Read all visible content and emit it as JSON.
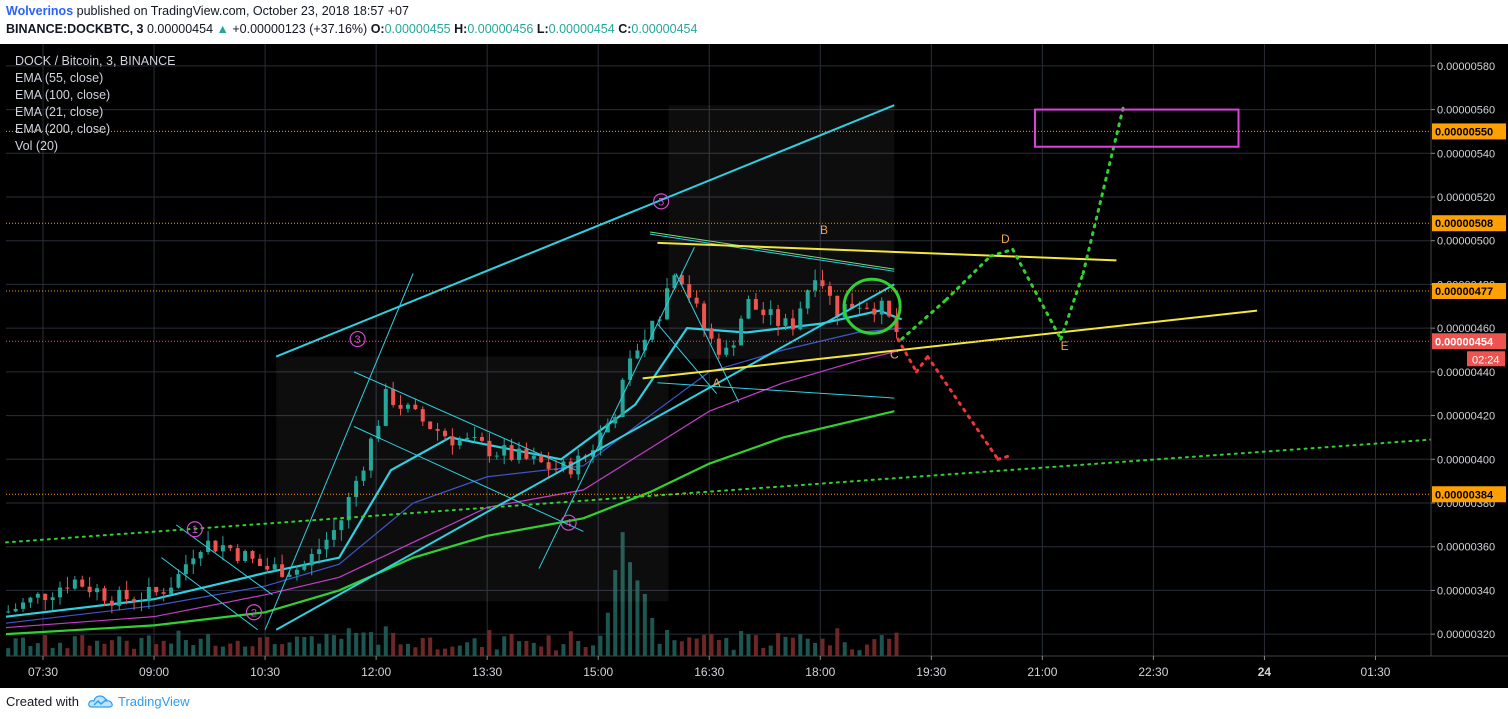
{
  "header": {
    "author": "Wolverinos",
    "published_text": "published on TradingView.com, October 23, 2018 18:57 +07",
    "symbol_line": "BINANCE:DOCKBTC, 3",
    "last_price": "0.00000454",
    "change_symbol": "▲",
    "change_text": "+0.00000123 (+37.16%)",
    "ohlc_labels": {
      "o": "O:",
      "h": "H:",
      "l": "L:",
      "c": "C:"
    },
    "ohlc_values": {
      "o": "0.00000455",
      "h": "0.00000456",
      "l": "0.00000454",
      "c": "0.00000454"
    }
  },
  "legend": {
    "title": "DOCK / Bitcoin, 3, BINANCE",
    "items": [
      "EMA (55, close)",
      "EMA (100, close)",
      "EMA (21, close)",
      "EMA (200, close)",
      "Vol (20)"
    ]
  },
  "footer": {
    "created_with": "Created with",
    "brand": "TradingView"
  },
  "colors": {
    "background": "#000000",
    "grid": "#2a2e39",
    "candle_up": "#26a69a",
    "candle_down": "#ef5350",
    "ema21": "#2fd0e0",
    "ema55": "#3e56c8",
    "ema100": "#c13ec8",
    "ema200": "#31d131",
    "channel": "#2fd0e0",
    "yellow": "#f2e83a",
    "magenta": "#e040e0",
    "orange_label": "#f2a14e",
    "pivot_purple": "#d04ad0",
    "horizontal_level": "#ff9800",
    "price_tag": "#ffa000",
    "last_price_tag": "#ef5350"
  },
  "chart_data": {
    "type": "candlestick",
    "symbol": "DOCK / Bitcoin, 3, BINANCE",
    "y_axis": {
      "min": 3.1e-06,
      "max": 5.9e-06,
      "ticks": [
        "0.00000580",
        "0.00000560",
        "0.00000540",
        "0.00000520",
        "0.00000500",
        "0.00000480",
        "0.00000460",
        "0.00000440",
        "0.00000420",
        "0.00000400",
        "0.00000380",
        "0.00000360",
        "0.00000340",
        "0.00000320"
      ],
      "tick_values": [
        5.8,
        5.6,
        5.4,
        5.2,
        5.0,
        4.8,
        4.6,
        4.4,
        4.2,
        4.0,
        3.8,
        3.6,
        3.4,
        3.2
      ]
    },
    "x_axis": {
      "labels": [
        "07:30",
        "09:00",
        "10:30",
        "12:00",
        "13:30",
        "15:00",
        "16:30",
        "18:00",
        "19:30",
        "21:00",
        "22:30",
        "24",
        "01:30"
      ],
      "hours": [
        7.5,
        9,
        10.5,
        12,
        13.5,
        15,
        16.5,
        18,
        19.5,
        21,
        22.5,
        24,
        25.5
      ],
      "start_hour": 7.0,
      "end_hour": 26.25
    },
    "price_levels": [
      {
        "label": "0.00000550",
        "value": 5.5
      },
      {
        "label": "0.00000508",
        "value": 5.08
      },
      {
        "label": "0.00000477",
        "value": 4.77
      },
      {
        "label": "0.00000454",
        "value": 4.54,
        "last": true
      },
      {
        "label": "0.00000384",
        "value": 3.84
      }
    ],
    "countdown": "02:24",
    "keypoints": [
      {
        "t": 7.0,
        "p": 3.3
      },
      {
        "t": 7.5,
        "p": 3.38
      },
      {
        "t": 7.9,
        "p": 3.45
      },
      {
        "t": 8.5,
        "p": 3.36
      },
      {
        "t": 9.0,
        "p": 3.38
      },
      {
        "t": 9.3,
        "p": 3.45
      },
      {
        "t": 9.6,
        "p": 3.62
      },
      {
        "t": 10.0,
        "p": 3.6
      },
      {
        "t": 10.5,
        "p": 3.5
      },
      {
        "t": 11.0,
        "p": 3.5
      },
      {
        "t": 11.5,
        "p": 3.7
      },
      {
        "t": 11.9,
        "p": 4.05
      },
      {
        "t": 12.15,
        "p": 4.3
      },
      {
        "t": 12.5,
        "p": 4.2
      },
      {
        "t": 13.0,
        "p": 4.1
      },
      {
        "t": 13.5,
        "p": 4.05
      },
      {
        "t": 14.0,
        "p": 4.0
      },
      {
        "t": 14.5,
        "p": 3.95
      },
      {
        "t": 14.8,
        "p": 4.0
      },
      {
        "t": 15.2,
        "p": 4.2
      },
      {
        "t": 15.5,
        "p": 4.5
      },
      {
        "t": 15.8,
        "p": 4.65
      },
      {
        "t": 16.05,
        "p": 4.9
      },
      {
        "t": 16.3,
        "p": 4.7
      },
      {
        "t": 16.5,
        "p": 4.55
      },
      {
        "t": 16.75,
        "p": 4.48
      },
      {
        "t": 17.0,
        "p": 4.72
      },
      {
        "t": 17.3,
        "p": 4.65
      },
      {
        "t": 17.6,
        "p": 4.6
      },
      {
        "t": 17.95,
        "p": 4.88
      },
      {
        "t": 18.2,
        "p": 4.68
      },
      {
        "t": 18.5,
        "p": 4.72
      },
      {
        "t": 18.8,
        "p": 4.7
      },
      {
        "t": 19.0,
        "p": 4.6
      },
      {
        "t": 19.1,
        "p": 4.54
      }
    ],
    "ema_series": [
      {
        "name": "EMA (21, close)",
        "color": "#2fd0e0",
        "points": [
          [
            7.0,
            3.28
          ],
          [
            9.0,
            3.36
          ],
          [
            10.5,
            3.48
          ],
          [
            11.5,
            3.55
          ],
          [
            12.2,
            3.95
          ],
          [
            13.0,
            4.1
          ],
          [
            14.5,
            4.0
          ],
          [
            15.5,
            4.25
          ],
          [
            16.2,
            4.6
          ],
          [
            17.0,
            4.58
          ],
          [
            18.0,
            4.62
          ],
          [
            18.8,
            4.68
          ],
          [
            19.1,
            4.64
          ]
        ]
      },
      {
        "name": "EMA (55, close)",
        "color": "#3e56c8",
        "points": [
          [
            7.0,
            3.25
          ],
          [
            9.0,
            3.33
          ],
          [
            10.5,
            3.42
          ],
          [
            11.5,
            3.52
          ],
          [
            12.5,
            3.8
          ],
          [
            13.5,
            3.92
          ],
          [
            14.8,
            3.97
          ],
          [
            15.7,
            4.2
          ],
          [
            16.5,
            4.4
          ],
          [
            17.5,
            4.5
          ],
          [
            18.5,
            4.58
          ],
          [
            19.1,
            4.6
          ]
        ]
      },
      {
        "name": "EMA (100, close)",
        "color": "#c13ec8",
        "points": [
          [
            7.0,
            3.23
          ],
          [
            9.0,
            3.28
          ],
          [
            10.5,
            3.38
          ],
          [
            11.5,
            3.46
          ],
          [
            12.5,
            3.62
          ],
          [
            13.5,
            3.78
          ],
          [
            14.8,
            3.86
          ],
          [
            15.7,
            4.05
          ],
          [
            16.5,
            4.22
          ],
          [
            17.5,
            4.35
          ],
          [
            18.5,
            4.45
          ],
          [
            19.1,
            4.5
          ]
        ]
      },
      {
        "name": "EMA (200, close)",
        "color": "#31d131",
        "points": [
          [
            7.0,
            3.2
          ],
          [
            9.0,
            3.24
          ],
          [
            10.5,
            3.3
          ],
          [
            11.5,
            3.4
          ],
          [
            12.5,
            3.55
          ],
          [
            13.5,
            3.65
          ],
          [
            14.8,
            3.73
          ],
          [
            15.7,
            3.85
          ],
          [
            16.5,
            3.98
          ],
          [
            17.5,
            4.1
          ],
          [
            18.5,
            4.18
          ],
          [
            19.0,
            4.22
          ]
        ]
      }
    ],
    "volume_peak_hour": 15.4,
    "annotations": {
      "wave_labels": [
        {
          "text": "1",
          "t": 9.55,
          "p": 3.68
        },
        {
          "text": "2",
          "t": 10.35,
          "p": 3.3
        },
        {
          "text": "3",
          "t": 11.75,
          "p": 4.55
        },
        {
          "text": "4",
          "t": 14.6,
          "p": 3.71
        },
        {
          "text": "5",
          "t": 15.85,
          "p": 5.18
        }
      ],
      "letter_labels": [
        {
          "text": "A",
          "t": 16.6,
          "p": 4.33
        },
        {
          "text": "B",
          "t": 18.05,
          "p": 5.03
        },
        {
          "text": "C",
          "t": 19.0,
          "p": 4.46
        },
        {
          "text": "D",
          "t": 20.5,
          "p": 4.99
        },
        {
          "text": "E",
          "t": 21.3,
          "p": 4.5
        }
      ]
    }
  }
}
